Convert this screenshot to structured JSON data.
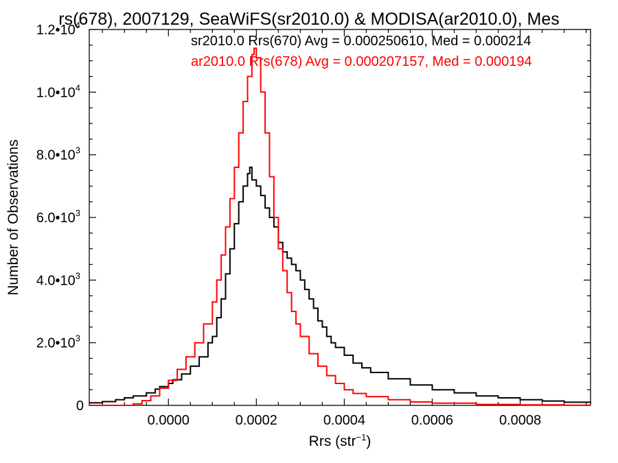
{
  "chart_data": {
    "type": "line",
    "title": "rs(678), 2007129, SeaWiFS(sr2010.0) & MODISA(ar2010.0), Mes",
    "xlabel": "Rrs (str",
    "xlabel_sup": "−1",
    "xlabel_close": ")",
    "ylabel": "Number of Observations",
    "xlim": [
      -0.00018,
      0.00096
    ],
    "ylim": [
      0,
      12000
    ],
    "x_ticks": [
      {
        "value": 0.0,
        "label": "0.0000"
      },
      {
        "value": 0.0002,
        "label": "0.0002"
      },
      {
        "value": 0.0004,
        "label": "0.0004"
      },
      {
        "value": 0.0006,
        "label": "0.0006"
      },
      {
        "value": 0.0008,
        "label": "0.0008"
      }
    ],
    "y_ticks": [
      {
        "value": 0,
        "mant": "0",
        "exp": ""
      },
      {
        "value": 2000,
        "mant": "2.0•10",
        "exp": "3"
      },
      {
        "value": 4000,
        "mant": "4.0•10",
        "exp": "3"
      },
      {
        "value": 6000,
        "mant": "6.0•10",
        "exp": "3"
      },
      {
        "value": 8000,
        "mant": "8.0•10",
        "exp": "3"
      },
      {
        "value": 10000,
        "mant": "1.0•10",
        "exp": "4"
      },
      {
        "value": 12000,
        "mant": "1.2•10",
        "exp": "4"
      }
    ],
    "legend_placement": "top-right",
    "series": [
      {
        "name": "sr2010.0 Rrs(670) Avg = 0.000250610, Med = 0.000214",
        "color": "#000000",
        "points": [
          [
            -0.00018,
            80
          ],
          [
            -0.00015,
            120
          ],
          [
            -0.00012,
            180
          ],
          [
            -0.0001,
            240
          ],
          [
            -8e-05,
            300
          ],
          [
            -5e-05,
            400
          ],
          [
            -3e-05,
            520
          ],
          [
            -2e-05,
            600
          ],
          [
            0.0,
            700
          ],
          [
            1e-05,
            820
          ],
          [
            3e-05,
            1000
          ],
          [
            5e-05,
            1250
          ],
          [
            7e-05,
            1550
          ],
          [
            9e-05,
            2000
          ],
          [
            0.0001,
            2200
          ],
          [
            0.00011,
            2800
          ],
          [
            0.00012,
            3400
          ],
          [
            0.00013,
            4200
          ],
          [
            0.00014,
            5000
          ],
          [
            0.00015,
            5800
          ],
          [
            0.00016,
            6500
          ],
          [
            0.00017,
            7000
          ],
          [
            0.00018,
            7400
          ],
          [
            0.000185,
            7600
          ],
          [
            0.00019,
            7200
          ],
          [
            0.0002,
            7000
          ],
          [
            0.00021,
            6700
          ],
          [
            0.00022,
            6300
          ],
          [
            0.00023,
            6000
          ],
          [
            0.00024,
            5700
          ],
          [
            0.00025,
            5200
          ],
          [
            0.00026,
            4900
          ],
          [
            0.00027,
            4700
          ],
          [
            0.00028,
            4500
          ],
          [
            0.00029,
            4300
          ],
          [
            0.0003,
            4000
          ],
          [
            0.00031,
            3700
          ],
          [
            0.00032,
            3400
          ],
          [
            0.00033,
            3100
          ],
          [
            0.00034,
            2700
          ],
          [
            0.00035,
            2500
          ],
          [
            0.00036,
            2200
          ],
          [
            0.00037,
            2000
          ],
          [
            0.00038,
            1850
          ],
          [
            0.0004,
            1600
          ],
          [
            0.00042,
            1350
          ],
          [
            0.00044,
            1200
          ],
          [
            0.00046,
            1050
          ],
          [
            0.0005,
            850
          ],
          [
            0.00055,
            650
          ],
          [
            0.0006,
            500
          ],
          [
            0.00065,
            400
          ],
          [
            0.0007,
            300
          ],
          [
            0.00075,
            240
          ],
          [
            0.0008,
            180
          ],
          [
            0.00085,
            140
          ],
          [
            0.0009,
            100
          ],
          [
            0.00096,
            80
          ]
        ]
      },
      {
        "name": "ar2010.0 Rrs(678) Avg = 0.000207157, Med = 0.000194",
        "color": "#ff0000",
        "points": [
          [
            -0.00018,
            0
          ],
          [
            -9e-05,
            0
          ],
          [
            -8e-05,
            50
          ],
          [
            -6e-05,
            150
          ],
          [
            -4e-05,
            300
          ],
          [
            -2e-05,
            550
          ],
          [
            0.0,
            800
          ],
          [
            2e-05,
            1150
          ],
          [
            4e-05,
            1550
          ],
          [
            6e-05,
            2000
          ],
          [
            8e-05,
            2600
          ],
          [
            0.0001,
            3300
          ],
          [
            0.00011,
            4000
          ],
          [
            0.00012,
            4800
          ],
          [
            0.00013,
            5700
          ],
          [
            0.00014,
            6600
          ],
          [
            0.00015,
            7600
          ],
          [
            0.00016,
            8700
          ],
          [
            0.00017,
            9700
          ],
          [
            0.00018,
            10500
          ],
          [
            0.00019,
            11200
          ],
          [
            0.000195,
            11400
          ],
          [
            0.0002,
            11100
          ],
          [
            0.00021,
            10000
          ],
          [
            0.00022,
            8700
          ],
          [
            0.00023,
            7300
          ],
          [
            0.00024,
            6000
          ],
          [
            0.00025,
            5000
          ],
          [
            0.00026,
            4300
          ],
          [
            0.00027,
            3600
          ],
          [
            0.00028,
            3000
          ],
          [
            0.00029,
            2600
          ],
          [
            0.0003,
            2200
          ],
          [
            0.00032,
            1650
          ],
          [
            0.00034,
            1250
          ],
          [
            0.00036,
            950
          ],
          [
            0.00038,
            700
          ],
          [
            0.0004,
            500
          ],
          [
            0.00042,
            380
          ],
          [
            0.00045,
            280
          ],
          [
            0.0005,
            180
          ],
          [
            0.00055,
            110
          ],
          [
            0.0006,
            70
          ],
          [
            0.0007,
            30
          ],
          [
            0.0008,
            15
          ],
          [
            0.0009,
            5
          ],
          [
            0.00096,
            0
          ]
        ]
      }
    ]
  }
}
